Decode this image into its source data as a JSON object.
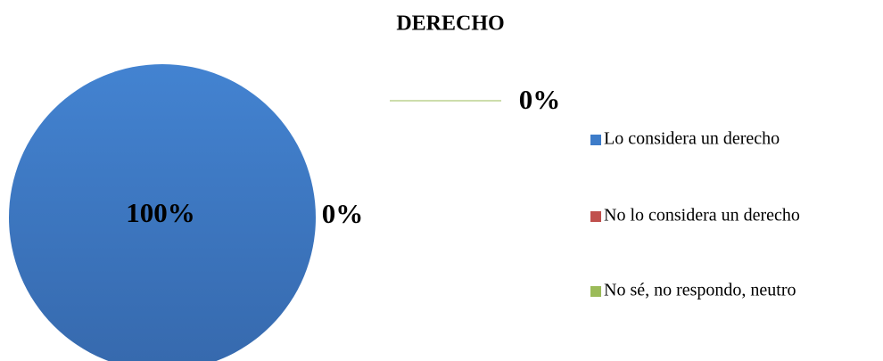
{
  "chart_data": {
    "type": "pie",
    "title": "DERECHO",
    "categories": [
      "Lo considera un derecho",
      "No lo considera un derecho",
      "No sé, no respondo, neutro"
    ],
    "values": [
      100,
      0,
      0
    ],
    "value_labels": [
      "100%",
      "0%",
      "0%"
    ],
    "colors": [
      "#3d7cc9",
      "#c0504d",
      "#9bbb59"
    ]
  }
}
